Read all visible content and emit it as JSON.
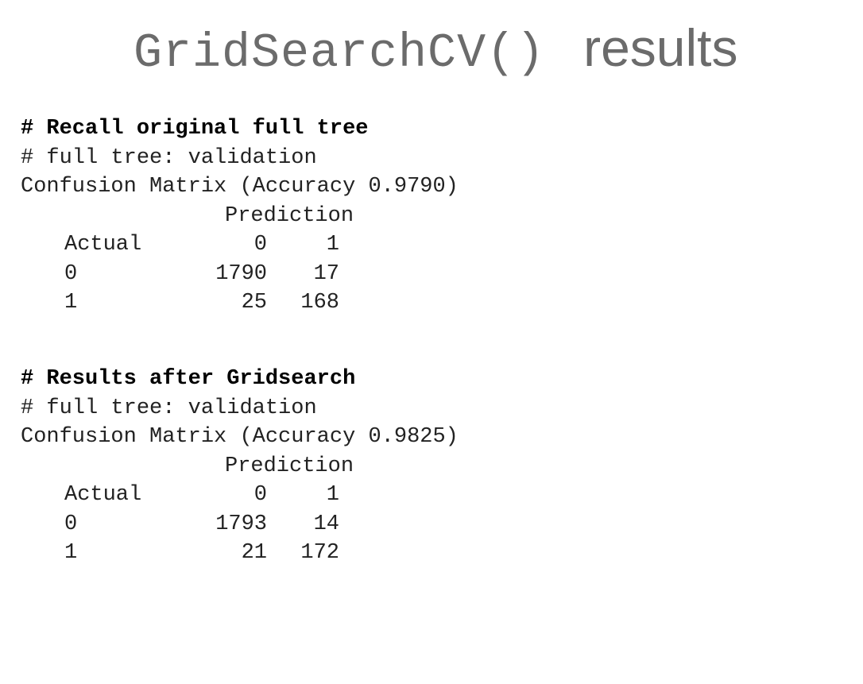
{
  "slide": {
    "title_code": "GridSearchCV()",
    "title_word": "results"
  },
  "sections": [
    {
      "heading": "# Recall original full tree",
      "comment": "# full tree: validation",
      "matrix_title": "Confusion Matrix (Accuracy 0.9790)",
      "prediction_label": "Prediction",
      "actual_label": "Actual",
      "columns": [
        "0",
        "1"
      ],
      "rows": [
        {
          "label": "0",
          "values": [
            "1790",
            "17"
          ]
        },
        {
          "label": "1",
          "values": [
            "25",
            "168"
          ]
        }
      ]
    },
    {
      "heading": "# Results after Gridsearch",
      "comment": "# full tree: validation",
      "matrix_title": "Confusion Matrix (Accuracy 0.9825)",
      "prediction_label": "Prediction",
      "actual_label": "Actual",
      "columns": [
        "0",
        "1"
      ],
      "rows": [
        {
          "label": "0",
          "values": [
            "1793",
            "14"
          ]
        },
        {
          "label": "1",
          "values": [
            "21",
            "172"
          ]
        }
      ]
    }
  ]
}
